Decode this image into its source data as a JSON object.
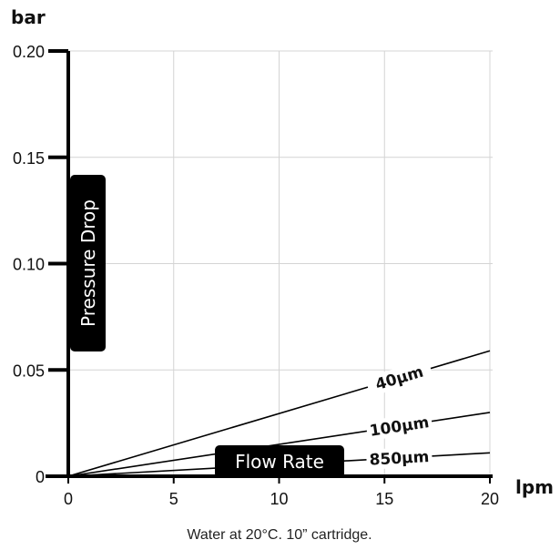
{
  "chart_data": {
    "type": "line",
    "x_unit": "lpm",
    "y_unit": "bar",
    "ylabel": "Pressure Drop",
    "xlabel": "Flow Rate",
    "caption": "Water at 20°C. 10” cartridge.",
    "xlim": [
      0,
      20
    ],
    "ylim": [
      0,
      0.2
    ],
    "x_ticks": [
      "0",
      "5",
      "10",
      "15",
      "20"
    ],
    "y_ticks": [
      "0",
      "0.05",
      "0.10",
      "0.15",
      "0.20"
    ],
    "grid": true,
    "series": [
      {
        "name": "40µm",
        "x": [
          0,
          20
        ],
        "y": [
          0,
          0.059
        ]
      },
      {
        "name": "100µm",
        "x": [
          0,
          20
        ],
        "y": [
          0,
          0.03
        ]
      },
      {
        "name": "850µm",
        "x": [
          0,
          20
        ],
        "y": [
          0,
          0.011
        ]
      }
    ]
  }
}
